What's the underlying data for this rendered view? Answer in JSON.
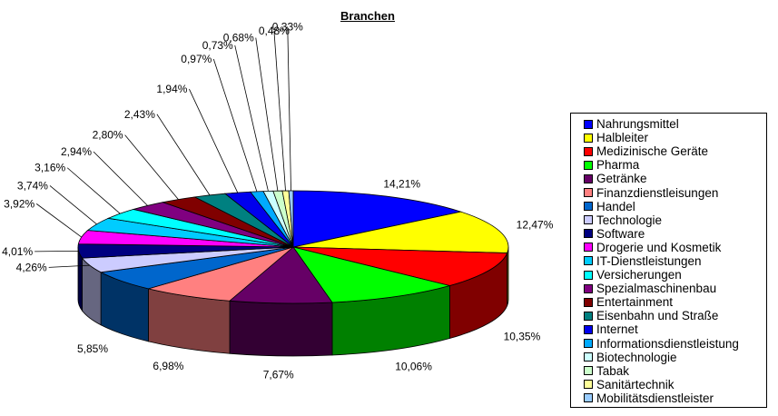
{
  "chart_data": {
    "type": "pie",
    "title": "Branchen",
    "legend_position": "right",
    "slices": [
      {
        "name": "Nahrungsmittel",
        "value": 14.21,
        "label": "14,21%",
        "color": "#0000ff"
      },
      {
        "name": "Halbleiter",
        "value": 12.47,
        "label": "12,47%",
        "color": "#ffff00"
      },
      {
        "name": "Medizinische Geräte",
        "value": 10.35,
        "label": "10,35%",
        "color": "#ff0000"
      },
      {
        "name": "Pharma",
        "value": 10.06,
        "label": "10,06%",
        "color": "#00ff00"
      },
      {
        "name": "Getränke",
        "value": 7.67,
        "label": "7,67%",
        "color": "#660066"
      },
      {
        "name": "Finanzdienstleisungen",
        "value": 6.98,
        "label": "6,98%",
        "color": "#ff8080"
      },
      {
        "name": "Handel",
        "value": 5.85,
        "label": "5,85%",
        "color": "#0066cc"
      },
      {
        "name": "Technologie",
        "value": 4.26,
        "label": "4,26%",
        "color": "#ccccff"
      },
      {
        "name": "Software",
        "value": 4.01,
        "label": "4,01%",
        "color": "#000080"
      },
      {
        "name": "Drogerie und Kosmetik",
        "value": 3.92,
        "label": "3,92%",
        "color": "#ff00ff"
      },
      {
        "name": "IT-Dienstleistungen",
        "value": 3.74,
        "label": "3,74%",
        "color": "#00ccff"
      },
      {
        "name": "Versicherungen",
        "value": 3.16,
        "label": "3,16%",
        "color": "#00ffff"
      },
      {
        "name": "Spezialmaschinenbau",
        "value": 2.94,
        "label": "2,94%",
        "color": "#800080"
      },
      {
        "name": "Entertainment",
        "value": 2.8,
        "label": "2,80%",
        "color": "#800000"
      },
      {
        "name": "Eisenbahn und Straße",
        "value": 2.43,
        "label": "2,43%",
        "color": "#008080"
      },
      {
        "name": "Internet",
        "value": 1.94,
        "label": "1,94%",
        "color": "#0000ee"
      },
      {
        "name": "Informationsdienstleistung",
        "value": 0.97,
        "label": "0,97%",
        "color": "#00aaff"
      },
      {
        "name": "Biotechnologie",
        "value": 0.73,
        "label": "0,73%",
        "color": "#ccffff"
      },
      {
        "name": "Tabak",
        "value": 0.68,
        "label": "0,68%",
        "color": "#ccffcc"
      },
      {
        "name": "Sanitärtechnik",
        "value": 0.48,
        "label": "0,48%",
        "color": "#ffff99"
      },
      {
        "name": "Mobilitätsdienstleister",
        "value": 0.33,
        "label": "0,33%",
        "color": "#99ccff"
      }
    ]
  }
}
